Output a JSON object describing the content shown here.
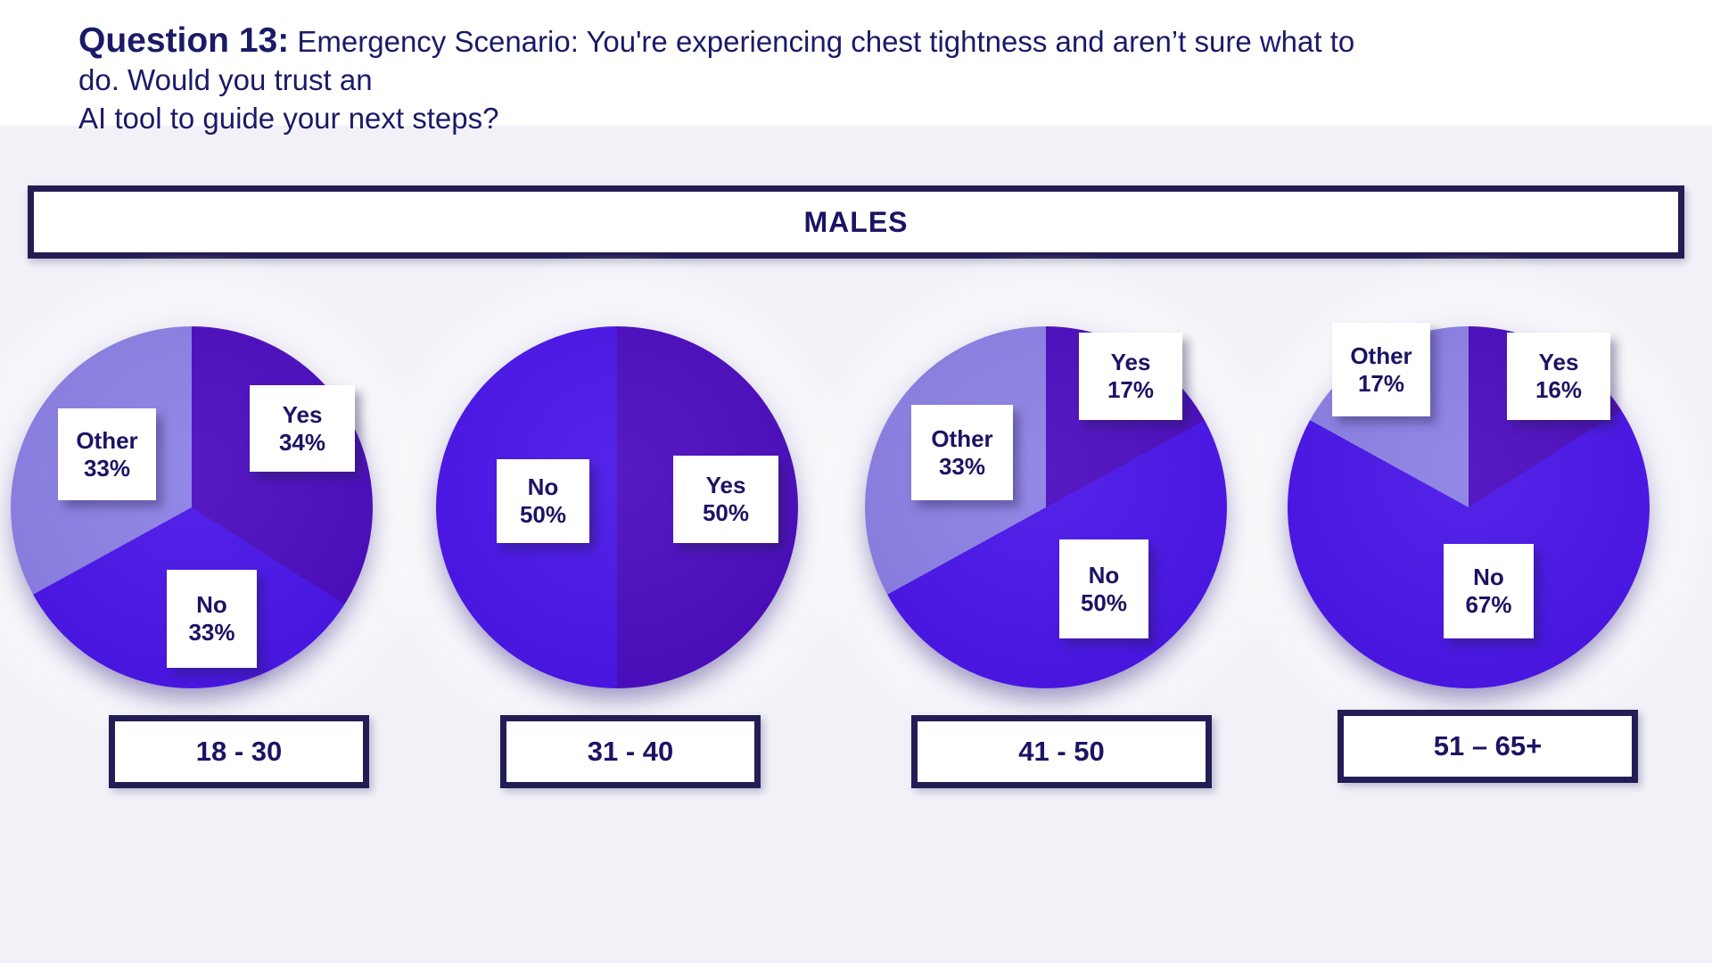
{
  "title": {
    "question_label": "Question 13:",
    "text_line1": "Emergency Scenario: You're experiencing chest tightness and aren’t sure what to do. Would you trust an",
    "text_line2": "AI tool to guide your next steps?"
  },
  "banner": {
    "label": "MALES"
  },
  "slice_colors": {
    "Yes": "#4A0ABE",
    "No": "#4813E8",
    "Other": "#8B80E4"
  },
  "colors": {
    "text_navy": "#1B1464",
    "box_border_navy": "#231D55",
    "background": "#F2F1F8",
    "title_band_background": "#FFFFFF"
  },
  "chart_data": [
    {
      "type": "pie",
      "title": "18 - 30",
      "group": "MALES",
      "labels": [
        "Yes",
        "No",
        "Other"
      ],
      "values": [
        34,
        33,
        33
      ],
      "pct_labels": [
        "34%",
        "33%",
        "33%"
      ],
      "start": "top",
      "direction": "clockwise",
      "legend": "off"
    },
    {
      "type": "pie",
      "title": "31 - 40",
      "group": "MALES",
      "labels": [
        "Yes",
        "No"
      ],
      "values": [
        50,
        50
      ],
      "pct_labels": [
        "50%",
        "50%"
      ],
      "start": "top",
      "direction": "clockwise",
      "legend": "off"
    },
    {
      "type": "pie",
      "title": "41 - 50",
      "group": "MALES",
      "labels": [
        "Yes",
        "No",
        "Other"
      ],
      "values": [
        17,
        50,
        33
      ],
      "pct_labels": [
        "17%",
        "50%",
        "33%"
      ],
      "start": "top",
      "direction": "clockwise",
      "legend": "off"
    },
    {
      "type": "pie",
      "title": "51 – 65+",
      "group": "MALES",
      "labels": [
        "Yes",
        "No",
        "Other"
      ],
      "values": [
        16,
        67,
        17
      ],
      "pct_labels": [
        "16%",
        "67%",
        "17%"
      ],
      "start": "top",
      "direction": "clockwise",
      "legend": "off"
    }
  ]
}
